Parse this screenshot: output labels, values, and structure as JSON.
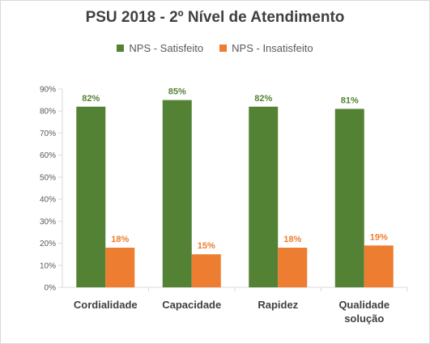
{
  "chart_data": {
    "type": "bar",
    "title": "PSU 2018 - 2º Nível de Atendimento",
    "categories": [
      "Cordialidade",
      "Capacidade",
      "Rapidez",
      "Qualidade solução"
    ],
    "category_lines": [
      [
        "Cordialidade"
      ],
      [
        "Capacidade"
      ],
      [
        "Rapidez"
      ],
      [
        "Qualidade",
        "solução"
      ]
    ],
    "series": [
      {
        "name": "NPS - Satisfeito",
        "values": [
          82,
          85,
          82,
          81
        ],
        "labels": [
          "82%",
          "85%",
          "82%",
          "81%"
        ],
        "color": "#548235"
      },
      {
        "name": "NPS - Insatisfeito",
        "values": [
          18,
          15,
          18,
          19
        ],
        "labels": [
          "18%",
          "15%",
          "18%",
          "19%"
        ],
        "color": "#ed7d31"
      }
    ],
    "ylim": [
      0,
      90
    ],
    "yticks": [
      0,
      10,
      20,
      30,
      40,
      50,
      60,
      70,
      80,
      90
    ],
    "ytick_labels": [
      "0%",
      "10%",
      "20%",
      "30%",
      "40%",
      "50%",
      "60%",
      "70%",
      "80%",
      "90%"
    ],
    "legend_position": "top",
    "grid": false
  }
}
